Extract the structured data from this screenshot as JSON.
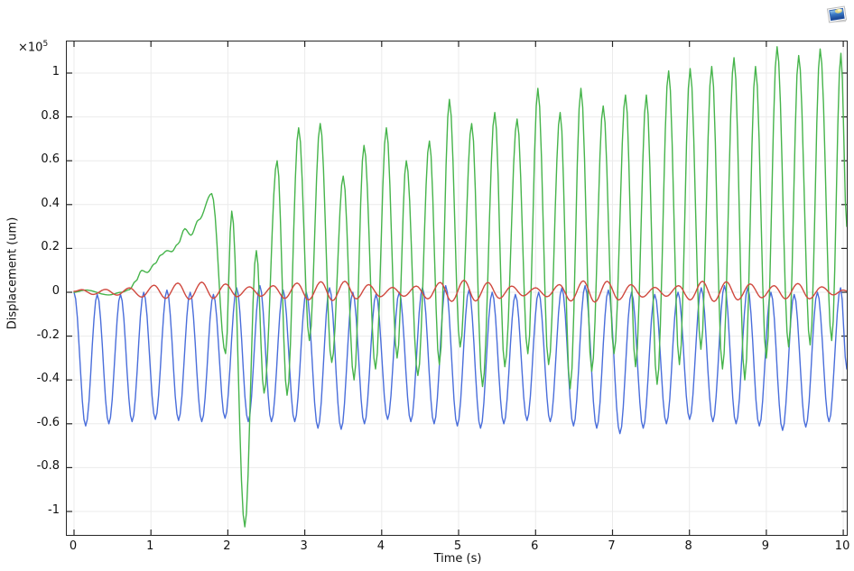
{
  "plot": {
    "y_multiplier_base": "×10",
    "y_multiplier_exp": "5"
  },
  "window": {
    "corner_icon": "plot-window-icon"
  },
  "colors": {
    "background": "#ffffff",
    "axis": "#262626",
    "grid": "#ebebeb",
    "tick_text": "#111111",
    "series_green": "#46b44b",
    "series_blue": "#4a6edb",
    "series_red": "#d0493f"
  },
  "chart_data": {
    "type": "line",
    "title": "",
    "xlabel": "Time (s)",
    "ylabel": "Displacement (um)",
    "y_axis_multiplier": "×10⁵",
    "y_unit_scale": 100000,
    "xlim": [
      -0.094,
      10.046
    ],
    "ylim": [
      -1.107,
      1.144
    ],
    "x_ticks": [
      0,
      1,
      2,
      3,
      4,
      5,
      6,
      7,
      8,
      9,
      10
    ],
    "x_tick_labels": [
      "0",
      "1",
      "2",
      "3",
      "4",
      "5",
      "6",
      "7",
      "8",
      "9",
      "10"
    ],
    "y_ticks": [
      1,
      0.8,
      0.6,
      0.4,
      0.2,
      0,
      -0.2,
      -0.4,
      -0.6,
      -0.8,
      -1
    ],
    "y_tick_labels": [
      "1",
      "0.8",
      "0.6",
      "0.4",
      "0.2",
      "0",
      "-0.2",
      "-0.4",
      "-0.6",
      "-0.8",
      "-1"
    ],
    "grid": true,
    "legend_position": "none",
    "interpolation_note": "points are extrema/keypoints of the oscillating curves, in units of 1e5 um; curves rendered by half-cosine interpolation between consecutive keypoints",
    "series": [
      {
        "name": "green-displacement",
        "color": "#46b44b",
        "points": [
          [
            0,
            0.0
          ],
          [
            0.15,
            0.01
          ],
          [
            0.45,
            -0.012
          ],
          [
            0.62,
            0.0
          ],
          [
            0.72,
            0.012
          ],
          [
            0.8,
            0.05
          ],
          [
            0.88,
            0.1
          ],
          [
            0.95,
            0.09
          ],
          [
            1.05,
            0.13
          ],
          [
            1.13,
            0.17
          ],
          [
            1.21,
            0.19
          ],
          [
            1.27,
            0.185
          ],
          [
            1.35,
            0.22
          ],
          [
            1.44,
            0.29
          ],
          [
            1.52,
            0.26
          ],
          [
            1.62,
            0.33
          ],
          [
            1.79,
            0.45
          ],
          [
            1.97,
            -0.28
          ],
          [
            2.05,
            0.37
          ],
          [
            2.22,
            -1.07
          ],
          [
            2.37,
            0.19
          ],
          [
            2.47,
            -0.46
          ],
          [
            2.64,
            0.6
          ],
          [
            2.77,
            -0.47
          ],
          [
            2.92,
            0.75
          ],
          [
            3.06,
            -0.22
          ],
          [
            3.2,
            0.77
          ],
          [
            3.35,
            -0.32
          ],
          [
            3.5,
            0.53
          ],
          [
            3.64,
            -0.4
          ],
          [
            3.77,
            0.67
          ],
          [
            3.92,
            -0.35
          ],
          [
            4.06,
            0.75
          ],
          [
            4.2,
            -0.3
          ],
          [
            4.32,
            0.6
          ],
          [
            4.47,
            -0.38
          ],
          [
            4.62,
            0.69
          ],
          [
            4.75,
            -0.33
          ],
          [
            4.88,
            0.88
          ],
          [
            5.02,
            -0.25
          ],
          [
            5.17,
            0.77
          ],
          [
            5.31,
            -0.43
          ],
          [
            5.47,
            0.82
          ],
          [
            5.6,
            -0.34
          ],
          [
            5.76,
            0.79
          ],
          [
            5.9,
            -0.28
          ],
          [
            6.03,
            0.93
          ],
          [
            6.17,
            -0.33
          ],
          [
            6.32,
            0.82
          ],
          [
            6.45,
            -0.44
          ],
          [
            6.59,
            0.93
          ],
          [
            6.73,
            -0.36
          ],
          [
            6.88,
            0.85
          ],
          [
            7.02,
            -0.28
          ],
          [
            7.17,
            0.9
          ],
          [
            7.3,
            -0.34
          ],
          [
            7.44,
            0.9
          ],
          [
            7.58,
            -0.42
          ],
          [
            7.73,
            1.01
          ],
          [
            7.87,
            -0.33
          ],
          [
            8.01,
            1.02
          ],
          [
            8.15,
            -0.26
          ],
          [
            8.29,
            1.03
          ],
          [
            8.43,
            -0.35
          ],
          [
            8.58,
            1.07
          ],
          [
            8.72,
            -0.4
          ],
          [
            8.86,
            1.03
          ],
          [
            9.0,
            -0.3
          ],
          [
            9.14,
            1.12
          ],
          [
            9.29,
            -0.25
          ],
          [
            9.42,
            1.08
          ],
          [
            9.57,
            -0.24
          ],
          [
            9.7,
            1.11
          ],
          [
            9.85,
            -0.22
          ],
          [
            9.97,
            1.09
          ],
          [
            10.046,
            0.3
          ]
        ]
      },
      {
        "name": "blue-displacement",
        "color": "#4a6edb",
        "points": [
          [
            0,
            0.0
          ],
          [
            0.151,
            -0.61
          ],
          [
            0.302,
            -0.01
          ],
          [
            0.453,
            -0.6
          ],
          [
            0.604,
            -0.01
          ],
          [
            0.755,
            -0.59
          ],
          [
            0.906,
            0.0
          ],
          [
            1.057,
            -0.58
          ],
          [
            1.208,
            0.01
          ],
          [
            1.359,
            -0.585
          ],
          [
            1.51,
            0.0
          ],
          [
            1.661,
            -0.59
          ],
          [
            1.812,
            -0.01
          ],
          [
            1.963,
            -0.575
          ],
          [
            2.114,
            0.02
          ],
          [
            2.265,
            -0.59
          ],
          [
            2.416,
            0.03
          ],
          [
            2.567,
            -0.59
          ],
          [
            2.718,
            0.01
          ],
          [
            2.869,
            -0.59
          ],
          [
            3.02,
            0.0
          ],
          [
            3.171,
            -0.62
          ],
          [
            3.322,
            0.02
          ],
          [
            3.473,
            -0.625
          ],
          [
            3.624,
            0.0
          ],
          [
            3.775,
            -0.6
          ],
          [
            3.926,
            -0.01
          ],
          [
            4.077,
            -0.58
          ],
          [
            4.228,
            0.0
          ],
          [
            4.379,
            -0.59
          ],
          [
            4.53,
            0.02
          ],
          [
            4.681,
            -0.6
          ],
          [
            4.832,
            0.03
          ],
          [
            4.983,
            -0.61
          ],
          [
            5.134,
            0.01
          ],
          [
            5.285,
            -0.62
          ],
          [
            5.436,
            0.0
          ],
          [
            5.587,
            -0.6
          ],
          [
            5.738,
            -0.01
          ],
          [
            5.889,
            -0.585
          ],
          [
            6.04,
            0.0
          ],
          [
            6.191,
            -0.59
          ],
          [
            6.342,
            0.02
          ],
          [
            6.493,
            -0.61
          ],
          [
            6.644,
            0.03
          ],
          [
            6.795,
            -0.62
          ],
          [
            6.946,
            0.01
          ],
          [
            7.097,
            -0.645
          ],
          [
            7.248,
            0.0
          ],
          [
            7.399,
            -0.62
          ],
          [
            7.55,
            -0.01
          ],
          [
            7.701,
            -0.6
          ],
          [
            7.852,
            0.0
          ],
          [
            8.003,
            -0.58
          ],
          [
            8.154,
            0.02
          ],
          [
            8.305,
            -0.59
          ],
          [
            8.456,
            0.03
          ],
          [
            8.607,
            -0.6
          ],
          [
            8.758,
            0.02
          ],
          [
            8.909,
            -0.61
          ],
          [
            9.06,
            0.0
          ],
          [
            9.211,
            -0.63
          ],
          [
            9.362,
            -0.01
          ],
          [
            9.513,
            -0.615
          ],
          [
            9.664,
            0.0
          ],
          [
            9.815,
            -0.59
          ],
          [
            9.966,
            0.02
          ],
          [
            10.046,
            -0.35
          ]
        ]
      },
      {
        "name": "red-displacement",
        "color": "#d0493f",
        "points": [
          [
            0,
            0.004
          ],
          [
            0.1,
            0.012
          ],
          [
            0.25,
            -0.01
          ],
          [
            0.41,
            0.013
          ],
          [
            0.56,
            -0.013
          ],
          [
            0.72,
            0.02
          ],
          [
            0.88,
            -0.022
          ],
          [
            1.04,
            0.032
          ],
          [
            1.19,
            -0.028
          ],
          [
            1.35,
            0.042
          ],
          [
            1.5,
            -0.032
          ],
          [
            1.66,
            0.046
          ],
          [
            1.81,
            -0.028
          ],
          [
            1.97,
            0.038
          ],
          [
            2.12,
            -0.02
          ],
          [
            2.28,
            0.025
          ],
          [
            2.43,
            -0.018
          ],
          [
            2.59,
            0.03
          ],
          [
            2.74,
            -0.028
          ],
          [
            2.9,
            0.042
          ],
          [
            3.05,
            -0.035
          ],
          [
            3.21,
            0.048
          ],
          [
            3.36,
            -0.038
          ],
          [
            3.52,
            0.05
          ],
          [
            3.67,
            -0.03
          ],
          [
            3.83,
            0.035
          ],
          [
            3.98,
            -0.02
          ],
          [
            4.14,
            0.022
          ],
          [
            4.29,
            -0.018
          ],
          [
            4.45,
            0.028
          ],
          [
            4.6,
            -0.03
          ],
          [
            4.76,
            0.045
          ],
          [
            4.91,
            -0.042
          ],
          [
            5.07,
            0.055
          ],
          [
            5.22,
            -0.04
          ],
          [
            5.38,
            0.045
          ],
          [
            5.53,
            -0.028
          ],
          [
            5.69,
            0.028
          ],
          [
            5.84,
            -0.016
          ],
          [
            6.0,
            0.02
          ],
          [
            6.15,
            -0.02
          ],
          [
            6.31,
            0.035
          ],
          [
            6.46,
            -0.04
          ],
          [
            6.62,
            0.052
          ],
          [
            6.77,
            -0.045
          ],
          [
            6.93,
            0.05
          ],
          [
            7.08,
            -0.035
          ],
          [
            7.24,
            0.035
          ],
          [
            7.39,
            -0.022
          ],
          [
            7.55,
            0.022
          ],
          [
            7.7,
            -0.018
          ],
          [
            7.86,
            0.03
          ],
          [
            8.01,
            -0.035
          ],
          [
            8.17,
            0.05
          ],
          [
            8.32,
            -0.042
          ],
          [
            8.48,
            0.048
          ],
          [
            8.63,
            -0.035
          ],
          [
            8.79,
            0.038
          ],
          [
            8.94,
            -0.025
          ],
          [
            9.1,
            0.03
          ],
          [
            9.25,
            -0.03
          ],
          [
            9.41,
            0.04
          ],
          [
            9.56,
            -0.03
          ],
          [
            9.72,
            0.025
          ],
          [
            9.87,
            -0.012
          ],
          [
            10.0,
            0.01
          ],
          [
            10.046,
            0.006
          ]
        ]
      }
    ]
  }
}
